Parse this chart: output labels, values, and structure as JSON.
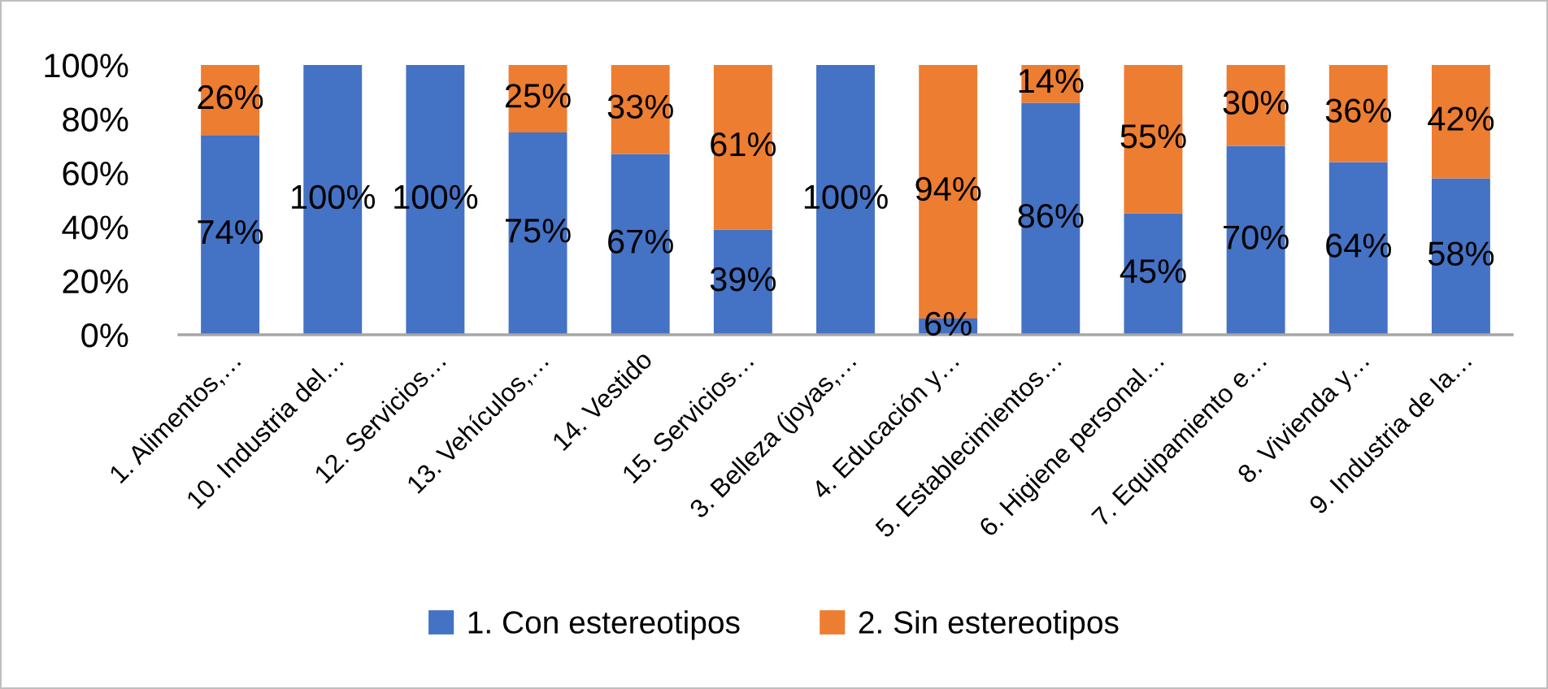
{
  "chart_data": {
    "type": "bar",
    "stacked": true,
    "categories": [
      "1. Alimentos,…",
      "10. Industria del…",
      "12. Servicios…",
      "13. Vehículos,…",
      "14. Vestido",
      "15. Servicios…",
      "3. Belleza (joyas,…",
      "4. Educación y…",
      "5. Establecimientos…",
      "6. Higiene personal…",
      "7. Equipamiento e…",
      "8. Vivienda y…",
      "9. Industria de la…"
    ],
    "series": [
      {
        "name": "1. Con estereotipos",
        "color": "#4472c4",
        "values": [
          74,
          100,
          100,
          75,
          67,
          39,
          100,
          6,
          86,
          45,
          70,
          64,
          58
        ],
        "value_labels": [
          "74%",
          "100%",
          "100%",
          "75%",
          "67%",
          "39%",
          "100%",
          "6%",
          "86%",
          "45%",
          "70%",
          "64%",
          "58%"
        ]
      },
      {
        "name": "2. Sin estereotipos",
        "color": "#ed7d31",
        "values": [
          26,
          0,
          0,
          25,
          33,
          61,
          0,
          94,
          14,
          55,
          30,
          36,
          42
        ],
        "value_labels": [
          "26%",
          null,
          null,
          "25%",
          "33%",
          "61%",
          null,
          "94%",
          "14%",
          "55%",
          "30%",
          "36%",
          "42%"
        ]
      }
    ],
    "ylim": [
      0,
      100
    ],
    "yticks": [
      {
        "value": 0,
        "label": "0%"
      },
      {
        "value": 20,
        "label": "20%"
      },
      {
        "value": 40,
        "label": "40%"
      },
      {
        "value": 60,
        "label": "60%"
      },
      {
        "value": 80,
        "label": "80%"
      },
      {
        "value": 100,
        "label": "100%"
      }
    ],
    "legend": "bottom"
  }
}
